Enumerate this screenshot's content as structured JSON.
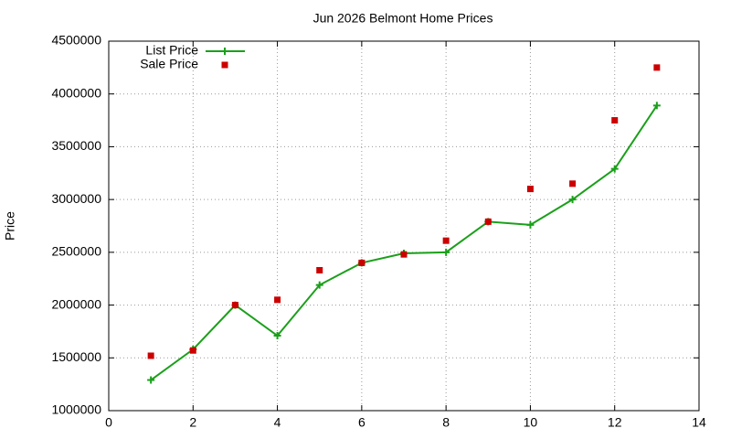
{
  "chart_data": {
    "type": "line",
    "title": "Jun 2026 Belmont Home Prices",
    "y_label": "Price",
    "x": [
      1,
      2,
      3,
      4,
      5,
      6,
      7,
      8,
      9,
      10,
      11,
      12,
      13
    ],
    "series": [
      {
        "name": "List Price",
        "color": "#1aa01a",
        "style": "linespoints",
        "values": [
          1290000,
          1580000,
          2000000,
          1710000,
          2190000,
          2400000,
          2490000,
          2500000,
          2790000,
          2760000,
          3000000,
          3290000,
          3890000
        ]
      },
      {
        "name": "Sale Price",
        "color": "#cc0000",
        "style": "points",
        "values": [
          1520000,
          1570000,
          2000000,
          2050000,
          2330000,
          2400000,
          2480000,
          2610000,
          2790000,
          3100000,
          3150000,
          3750000,
          4250000
        ]
      }
    ],
    "xlim": [
      0,
      14
    ],
    "xticks": [
      0,
      2,
      4,
      6,
      8,
      10,
      12,
      14
    ],
    "ylim": [
      1000000,
      4500000
    ],
    "yticks": [
      1000000,
      1500000,
      2000000,
      2500000,
      3000000,
      3500000,
      4000000,
      4500000
    ],
    "grid": true,
    "legend": "top-left"
  }
}
